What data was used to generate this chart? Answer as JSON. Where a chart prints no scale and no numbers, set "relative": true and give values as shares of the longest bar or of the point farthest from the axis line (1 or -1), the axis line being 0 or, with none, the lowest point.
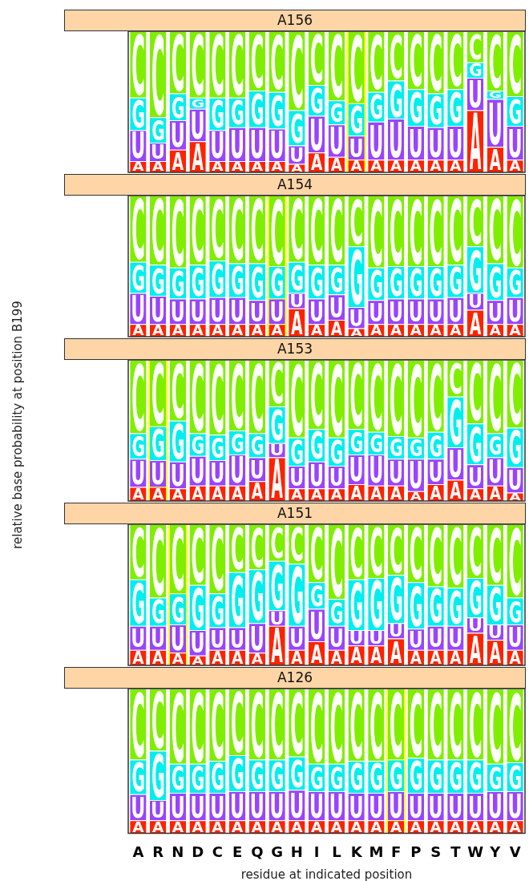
{
  "chart_data": [
    {
      "type": "bar",
      "title": "A156",
      "stacked": true,
      "relative": true,
      "tick_labels": false,
      "categories": [
        "A",
        "R",
        "N",
        "D",
        "C",
        "E",
        "Q",
        "G",
        "H",
        "I",
        "L",
        "K",
        "M",
        "F",
        "P",
        "S",
        "T",
        "W",
        "Y",
        "V"
      ],
      "bands": [
        {
          "axis": "x",
          "from": "K",
          "to": "K",
          "color": "#ffff33"
        }
      ],
      "series": [
        {
          "name": "A",
          "color": "#ff2200",
          "values": [
            0.08,
            0.08,
            0.16,
            0.22,
            0.08,
            0.08,
            0.08,
            0.08,
            0.06,
            0.14,
            0.11,
            0.09,
            0.09,
            0.09,
            0.09,
            0.09,
            0.09,
            0.44,
            0.18,
            0.09
          ]
        },
        {
          "name": "U",
          "color": "#9944ff",
          "values": [
            0.22,
            0.13,
            0.21,
            0.23,
            0.22,
            0.24,
            0.24,
            0.23,
            0.13,
            0.26,
            0.23,
            0.17,
            0.27,
            0.29,
            0.24,
            0.23,
            0.24,
            0.23,
            0.34,
            0.24
          ]
        },
        {
          "name": "G",
          "color": "#00eeee",
          "values": [
            0.23,
            0.18,
            0.19,
            0.08,
            0.23,
            0.21,
            0.26,
            0.26,
            0.25,
            0.22,
            0.17,
            0.23,
            0.21,
            0.27,
            0.26,
            0.24,
            0.26,
            0.11,
            0.06,
            0.21
          ]
        },
        {
          "name": "C",
          "color": "#80ee00",
          "values": [
            0.47,
            0.61,
            0.44,
            0.47,
            0.47,
            0.47,
            0.42,
            0.43,
            0.56,
            0.38,
            0.49,
            0.51,
            0.43,
            0.35,
            0.41,
            0.44,
            0.41,
            0.22,
            0.42,
            0.46
          ]
        }
      ]
    },
    {
      "type": "bar",
      "title": "A154",
      "stacked": true,
      "relative": true,
      "tick_labels": false,
      "categories": [
        "A",
        "R",
        "N",
        "D",
        "C",
        "E",
        "Q",
        "G",
        "H",
        "I",
        "L",
        "K",
        "M",
        "F",
        "P",
        "S",
        "T",
        "W",
        "Y",
        "V"
      ],
      "bands": [
        {
          "axis": "x",
          "from": "G",
          "to": "G",
          "color": "#ffff33"
        }
      ],
      "series": [
        {
          "name": "A",
          "color": "#ff2200",
          "values": [
            0.09,
            0.09,
            0.09,
            0.09,
            0.09,
            0.09,
            0.09,
            0.09,
            0.2,
            0.09,
            0.12,
            0.06,
            0.09,
            0.09,
            0.09,
            0.09,
            0.09,
            0.19,
            0.09,
            0.09
          ]
        },
        {
          "name": "U",
          "color": "#9944ff",
          "values": [
            0.22,
            0.2,
            0.18,
            0.18,
            0.19,
            0.19,
            0.17,
            0.18,
            0.11,
            0.18,
            0.18,
            0.15,
            0.17,
            0.18,
            0.18,
            0.18,
            0.19,
            0.12,
            0.17,
            0.19
          ]
        },
        {
          "name": "G",
          "color": "#00eeee",
          "values": [
            0.22,
            0.22,
            0.22,
            0.24,
            0.26,
            0.24,
            0.26,
            0.23,
            0.22,
            0.24,
            0.21,
            0.43,
            0.23,
            0.23,
            0.23,
            0.23,
            0.23,
            0.33,
            0.26,
            0.21
          ]
        },
        {
          "name": "C",
          "color": "#80ee00",
          "values": [
            0.47,
            0.49,
            0.51,
            0.49,
            0.46,
            0.48,
            0.48,
            0.5,
            0.47,
            0.49,
            0.49,
            0.36,
            0.51,
            0.5,
            0.5,
            0.5,
            0.49,
            0.36,
            0.48,
            0.51
          ]
        }
      ]
    },
    {
      "type": "bar",
      "title": "A153",
      "ylabel": "relative base probability at position B199",
      "stacked": true,
      "relative": true,
      "tick_labels": false,
      "categories": [
        "A",
        "R",
        "N",
        "D",
        "C",
        "E",
        "Q",
        "G",
        "H",
        "I",
        "L",
        "K",
        "M",
        "F",
        "P",
        "S",
        "T",
        "W",
        "Y",
        "V"
      ],
      "bands": [
        {
          "axis": "x",
          "from": "R",
          "to": "R",
          "color": "#ffff33"
        }
      ],
      "series": [
        {
          "name": "A",
          "color": "#ff2200",
          "values": [
            0.1,
            0.1,
            0.09,
            0.11,
            0.11,
            0.11,
            0.14,
            0.31,
            0.09,
            0.09,
            0.09,
            0.12,
            0.11,
            0.11,
            0.07,
            0.12,
            0.15,
            0.09,
            0.11,
            0.06
          ]
        },
        {
          "name": "U",
          "color": "#9944ff",
          "values": [
            0.2,
            0.19,
            0.19,
            0.21,
            0.18,
            0.22,
            0.17,
            0.1,
            0.16,
            0.19,
            0.16,
            0.21,
            0.22,
            0.19,
            0.23,
            0.18,
            0.23,
            0.17,
            0.2,
            0.18
          ]
        },
        {
          "name": "G",
          "color": "#00eeee",
          "values": [
            0.18,
            0.24,
            0.29,
            0.16,
            0.18,
            0.17,
            0.17,
            0.26,
            0.2,
            0.23,
            0.2,
            0.18,
            0.16,
            0.16,
            0.15,
            0.19,
            0.36,
            0.29,
            0.17,
            0.28
          ]
        },
        {
          "name": "C",
          "color": "#80ee00",
          "values": [
            0.52,
            0.47,
            0.43,
            0.52,
            0.53,
            0.5,
            0.52,
            0.33,
            0.55,
            0.49,
            0.55,
            0.49,
            0.51,
            0.54,
            0.55,
            0.51,
            0.26,
            0.45,
            0.52,
            0.48
          ]
        }
      ]
    },
    {
      "type": "bar",
      "title": "A151",
      "stacked": true,
      "relative": true,
      "tick_labels": false,
      "categories": [
        "A",
        "R",
        "N",
        "D",
        "C",
        "E",
        "Q",
        "G",
        "H",
        "I",
        "L",
        "K",
        "M",
        "F",
        "P",
        "S",
        "T",
        "W",
        "Y",
        "V"
      ],
      "bands": [
        {
          "axis": "x",
          "from": "N",
          "to": "N",
          "color": "#ffff33"
        }
      ],
      "series": [
        {
          "name": "A",
          "color": "#ff2200",
          "values": [
            0.11,
            0.11,
            0.09,
            0.07,
            0.11,
            0.11,
            0.09,
            0.28,
            0.11,
            0.17,
            0.11,
            0.14,
            0.14,
            0.19,
            0.11,
            0.11,
            0.11,
            0.23,
            0.18,
            0.11
          ]
        },
        {
          "name": "U",
          "color": "#9944ff",
          "values": [
            0.17,
            0.17,
            0.2,
            0.18,
            0.16,
            0.16,
            0.21,
            0.11,
            0.17,
            0.23,
            0.17,
            0.11,
            0.11,
            0.11,
            0.15,
            0.17,
            0.17,
            0.11,
            0.11,
            0.18
          ]
        },
        {
          "name": "G",
          "color": "#00eeee",
          "values": [
            0.33,
            0.2,
            0.22,
            0.32,
            0.24,
            0.39,
            0.38,
            0.35,
            0.44,
            0.19,
            0.19,
            0.36,
            0.37,
            0.34,
            0.33,
            0.28,
            0.27,
            0.28,
            0.28,
            0.19
          ]
        },
        {
          "name": "C",
          "color": "#80ee00",
          "values": [
            0.39,
            0.52,
            0.49,
            0.43,
            0.49,
            0.34,
            0.32,
            0.26,
            0.28,
            0.41,
            0.53,
            0.39,
            0.38,
            0.36,
            0.41,
            0.44,
            0.45,
            0.38,
            0.43,
            0.52
          ]
        }
      ]
    },
    {
      "type": "bar",
      "title": "A126",
      "xlabel": "residue at indicated position",
      "stacked": true,
      "relative": true,
      "tick_labels": "x",
      "categories": [
        "A",
        "R",
        "N",
        "D",
        "C",
        "E",
        "Q",
        "G",
        "H",
        "I",
        "L",
        "K",
        "M",
        "F",
        "P",
        "S",
        "T",
        "W",
        "Y",
        "V"
      ],
      "bands": [
        {
          "axis": "x",
          "from": "F",
          "to": "F",
          "color": "#ffff33"
        }
      ],
      "series": [
        {
          "name": "A",
          "color": "#ff2200",
          "values": [
            0.09,
            0.09,
            0.09,
            0.09,
            0.09,
            0.09,
            0.09,
            0.09,
            0.09,
            0.09,
            0.09,
            0.09,
            0.09,
            0.09,
            0.09,
            0.09,
            0.09,
            0.09,
            0.09,
            0.09
          ]
        },
        {
          "name": "U",
          "color": "#9944ff",
          "values": [
            0.18,
            0.14,
            0.19,
            0.19,
            0.19,
            0.2,
            0.2,
            0.2,
            0.21,
            0.2,
            0.2,
            0.19,
            0.19,
            0.2,
            0.19,
            0.19,
            0.19,
            0.19,
            0.2,
            0.2
          ]
        },
        {
          "name": "G",
          "color": "#00eeee",
          "values": [
            0.24,
            0.34,
            0.2,
            0.2,
            0.22,
            0.25,
            0.22,
            0.22,
            0.23,
            0.19,
            0.19,
            0.22,
            0.22,
            0.22,
            0.24,
            0.23,
            0.23,
            0.23,
            0.19,
            0.2
          ]
        },
        {
          "name": "C",
          "color": "#80ee00",
          "values": [
            0.49,
            0.43,
            0.52,
            0.52,
            0.5,
            0.46,
            0.49,
            0.49,
            0.47,
            0.52,
            0.52,
            0.5,
            0.5,
            0.49,
            0.48,
            0.49,
            0.49,
            0.49,
            0.52,
            0.51
          ]
        }
      ]
    }
  ]
}
